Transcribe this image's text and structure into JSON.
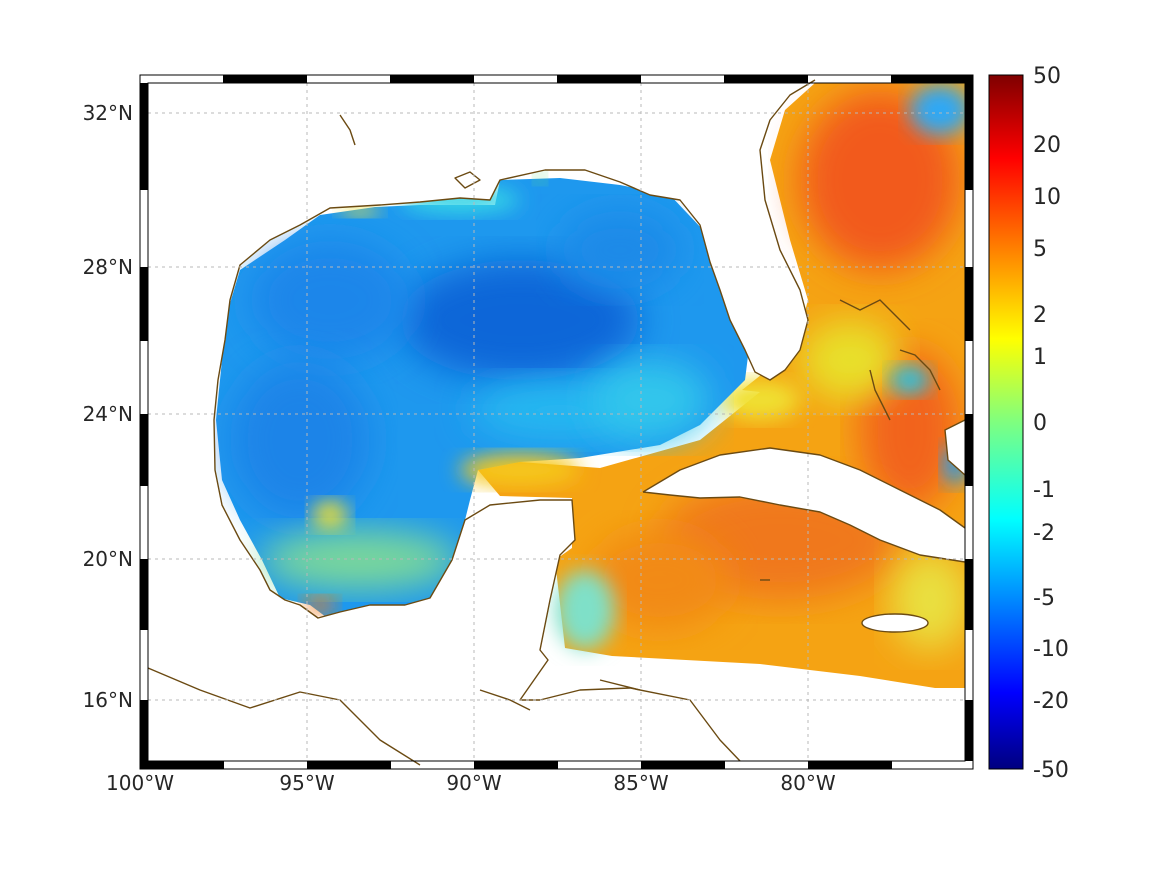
{
  "map": {
    "lon_range": [
      -100,
      -75
    ],
    "lat_range": [
      14,
      33
    ],
    "lon_tick_labels": [
      {
        "value": -100,
        "label": "100°W"
      },
      {
        "value": -95,
        "label": "95°W"
      },
      {
        "value": -90,
        "label": "90°W"
      },
      {
        "value": -85,
        "label": "85°W"
      },
      {
        "value": -80,
        "label": "80°W"
      }
    ],
    "lat_tick_labels": [
      {
        "value": 32,
        "label": "32°N"
      },
      {
        "value": 28,
        "label": "28°N"
      },
      {
        "value": 24,
        "label": "24°N"
      },
      {
        "value": 20,
        "label": "20°N"
      },
      {
        "value": 16,
        "label": "16°N"
      }
    ],
    "grid": true,
    "coastline_color": "#6b4a12",
    "colors": {
      "gulf_low": "#1f78e6",
      "gulf_mid": "#1e9af0",
      "caribbean_high": "#f07a14",
      "atlantic_high": "#f0641e",
      "transition": "#f6d21e"
    }
  },
  "colorbar": {
    "tick_labels": [
      "50",
      "20",
      "10",
      "5",
      "2",
      "1",
      "0",
      "-1",
      "-2",
      "-5",
      "-10",
      "-20",
      "-50"
    ],
    "colormap": "jet"
  }
}
